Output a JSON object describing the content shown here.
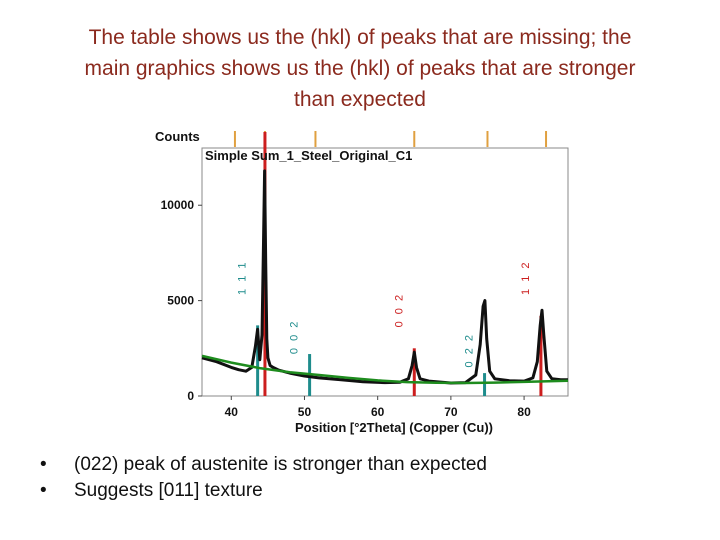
{
  "slide": {
    "title_lines": [
      "The table shows us the (hkl) of peaks that are missing; the",
      "main graphics shows us the (hkl) of peaks that are stronger",
      "than expected"
    ],
    "bullets": [
      "(022) peak of austenite is stronger than expected",
      "Suggests [011] texture"
    ]
  },
  "chart_data": {
    "type": "line",
    "title": "Simple Sum_1_Steel_Original_C1",
    "ylabel": "Counts",
    "xlabel": "Position [°2Theta] (Copper (Cu))",
    "xlim": [
      36,
      86
    ],
    "ylim": [
      0,
      13000
    ],
    "x_ticks": [
      40,
      50,
      60,
      70,
      80
    ],
    "y_ticks": [
      0,
      5000,
      10000
    ],
    "grid": false,
    "series": [
      {
        "role": "measured",
        "color": "#111111",
        "x": [
          36,
          38,
          40,
          41,
          42,
          42.8,
          43.3,
          43.6,
          43.9,
          44.2,
          44.4,
          44.55,
          44.7,
          44.85,
          45.0,
          45.3,
          45.7,
          46.5,
          48,
          50,
          52,
          55,
          58,
          61,
          63,
          64.2,
          64.7,
          65.0,
          65.3,
          65.8,
          67,
          70,
          72,
          73.4,
          74.0,
          74.4,
          74.65,
          74.9,
          75.3,
          76,
          78,
          80,
          81.2,
          81.8,
          82.2,
          82.45,
          82.7,
          83.1,
          83.8,
          85,
          86
        ],
        "y": [
          2000,
          1800,
          1500,
          1380,
          1300,
          1500,
          2600,
          3500,
          1900,
          3200,
          8000,
          11800,
          7000,
          3000,
          2000,
          1600,
          1500,
          1350,
          1200,
          1050,
          950,
          850,
          750,
          700,
          720,
          900,
          1600,
          2300,
          1500,
          900,
          780,
          680,
          700,
          1100,
          2700,
          4700,
          5000,
          3000,
          1300,
          900,
          800,
          780,
          950,
          1800,
          3700,
          4500,
          3200,
          1300,
          900,
          850,
          850
        ]
      },
      {
        "role": "background",
        "color": "#1e8c1e",
        "x": [
          36,
          40,
          44,
          48,
          52,
          56,
          60,
          64,
          68,
          72,
          76,
          80,
          86
        ],
        "y": [
          2100,
          1750,
          1450,
          1250,
          1100,
          950,
          820,
          730,
          690,
          680,
          700,
          740,
          800
        ]
      }
    ],
    "reference_peaks": [
      {
        "hkl": "1 1 1",
        "x": 43.6,
        "height": 3700,
        "color": "#1e8c8c",
        "label_y": 6200
      },
      {
        "hkl": "0 0 2",
        "x": 50.7,
        "height": 2200,
        "color": "#1e8c8c",
        "label_y": 3100
      },
      {
        "hkl": "0 2 2",
        "x": 74.6,
        "height": 1200,
        "color": "#1e8c8c",
        "label_y": 2400
      },
      {
        "hkl": "",
        "x": 44.6,
        "height": 14000,
        "color": "#cc1e1e",
        "label_y": 11700
      },
      {
        "hkl": "0 0 2",
        "x": 65.0,
        "height": 2500,
        "color": "#cc1e1e",
        "label_y": 4500
      },
      {
        "hkl": "1 1 2",
        "x": 82.3,
        "height": 4200,
        "color": "#cc1e1e",
        "label_y": 6200
      }
    ],
    "top_markers": [
      {
        "x": 40.5,
        "color": "#e0a040"
      },
      {
        "x": 44.6,
        "color": "#e0a040"
      },
      {
        "x": 51.5,
        "color": "#e0a040"
      },
      {
        "x": 65.0,
        "color": "#e0a040"
      },
      {
        "x": 75.0,
        "color": "#e0a040"
      },
      {
        "x": 83.0,
        "color": "#e0a040"
      }
    ]
  }
}
